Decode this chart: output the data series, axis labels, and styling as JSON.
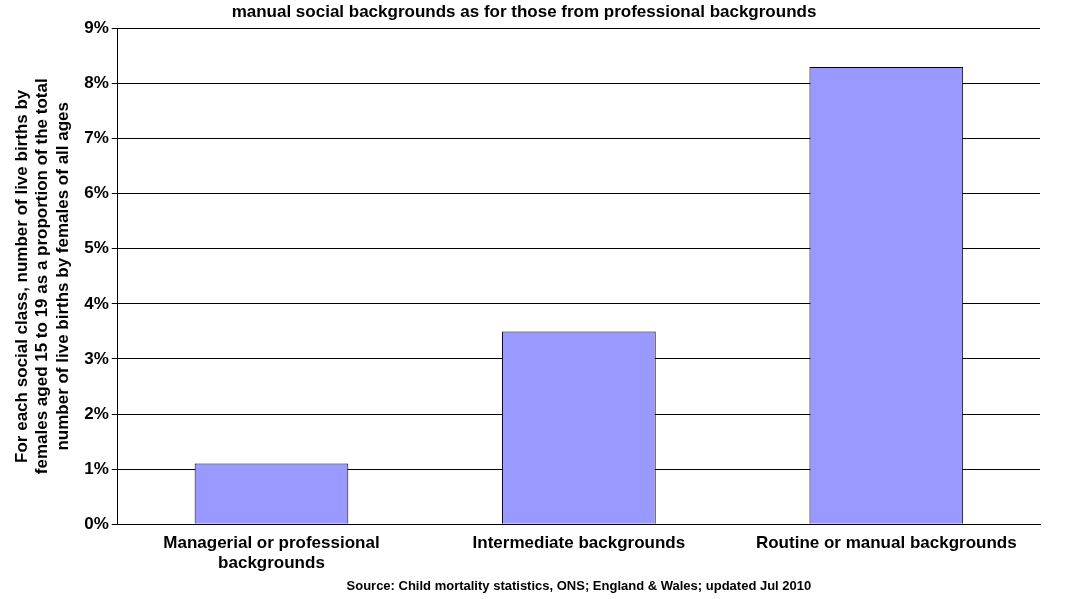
{
  "chart_data": {
    "type": "bar",
    "title": "manual social backgrounds as for those from professional backgrounds",
    "ylabel": "For each social class, number of live births by females aged 15 to 19 as a proportion of the total number of live births by females of all ages",
    "categories": [
      "Managerial or professional backgrounds",
      "Intermediate backgrounds",
      "Routine or manual backgrounds"
    ],
    "values": [
      1.1,
      3.5,
      8.3
    ],
    "color": "#9999ff",
    "ylim": [
      0,
      9
    ],
    "yticks": [
      {
        "value": 0,
        "label": "0%"
      },
      {
        "value": 1,
        "label": "1%"
      },
      {
        "value": 2,
        "label": "2%"
      },
      {
        "value": 3,
        "label": "3%"
      },
      {
        "value": 4,
        "label": "4%"
      },
      {
        "value": 5,
        "label": "5%"
      },
      {
        "value": 6,
        "label": "6%"
      },
      {
        "value": 7,
        "label": "7%"
      },
      {
        "value": 8,
        "label": "8%"
      },
      {
        "value": 9,
        "label": "9%"
      }
    ],
    "grid": "y",
    "legend": false,
    "annotations": [
      "Source: Child mortality statistics, ONS; England & Wales; updated Jul 2010"
    ]
  }
}
